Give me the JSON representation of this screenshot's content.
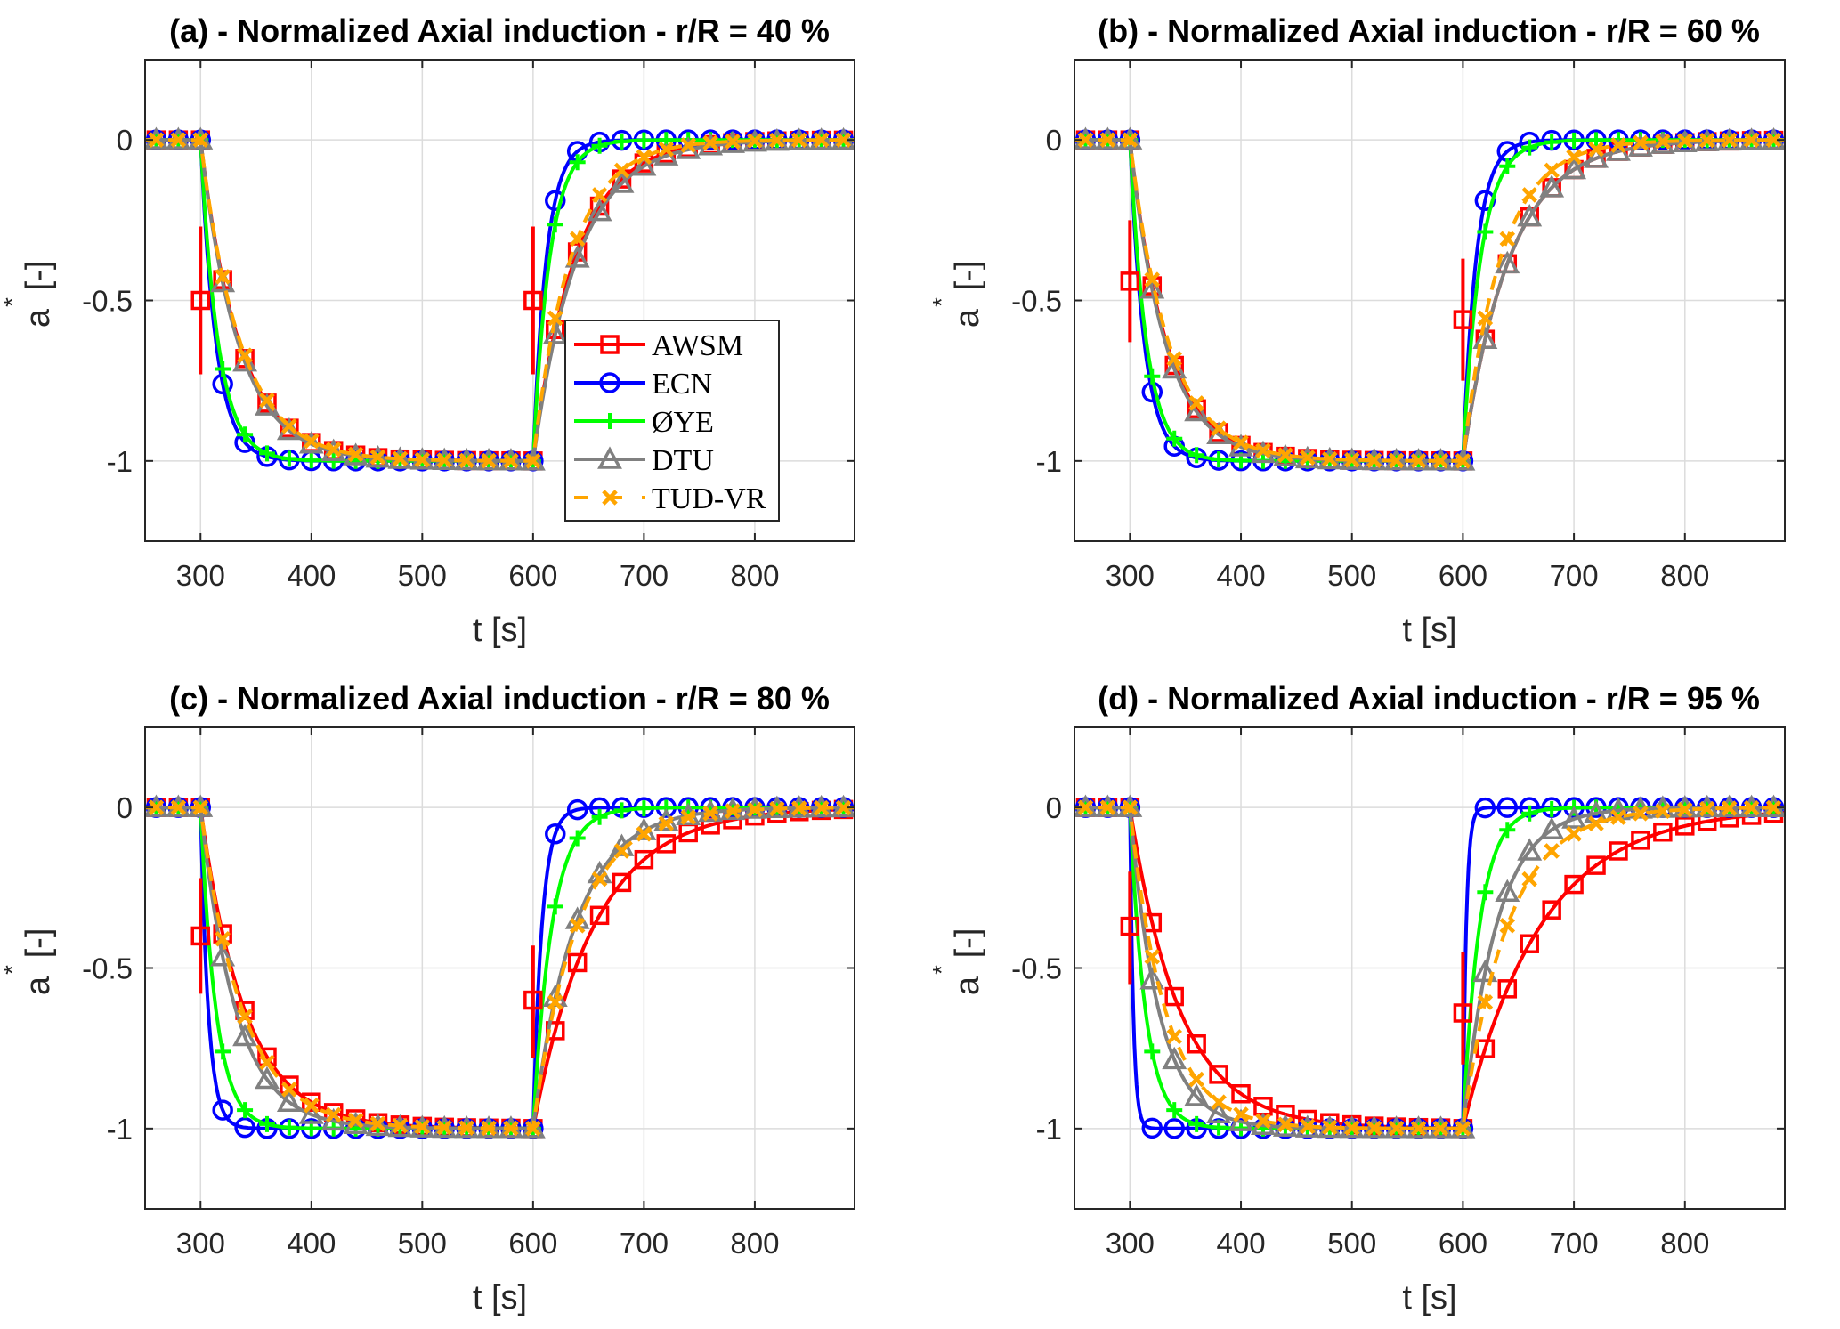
{
  "chart_data": [
    {
      "type": "line",
      "panel": "a",
      "title": "(a) - Normalized Axial induction - r/R = 40 %",
      "xlabel": "t [s]",
      "ylabel": "a* [-]",
      "ylabel_main": "a",
      "ylabel_sup": "*",
      "ylabel_unit": "[-]",
      "xlim": [
        250,
        890
      ],
      "ylim": [
        -1.25,
        0.25
      ],
      "xticks": [
        300,
        400,
        500,
        600,
        700,
        800
      ],
      "xtick_labels": [
        "300",
        "400",
        "500",
        "600",
        "700",
        "800"
      ],
      "yticks": [
        0,
        -0.5,
        -1
      ],
      "ytick_labels": [
        "0",
        "-0.5",
        "-1"
      ],
      "grid": true,
      "legend": {
        "visible": true,
        "placement": "center-right"
      },
      "step_times": [
        300,
        600
      ],
      "tau_down": {
        "AWSM": 35,
        "ECN": 14,
        "ØYE": 16,
        "DTU": 34,
        "TUD-VR": 36
      },
      "tau_up": {
        "AWSM": 38,
        "ECN": 12,
        "ØYE": 15,
        "DTU": 40,
        "TUD-VR": 34
      },
      "awsm_errorbars": [
        {
          "t": 300,
          "y": -0.5,
          "low": -0.73,
          "high": -0.27
        },
        {
          "t": 600,
          "y": -0.5,
          "low": -0.73,
          "high": -0.27
        }
      ]
    },
    {
      "type": "line",
      "panel": "b",
      "title": "(b) - Normalized Axial induction - r/R = 60 %",
      "xlabel": "t [s]",
      "ylabel": "a* [-]",
      "ylabel_main": "a",
      "ylabel_sup": "*",
      "ylabel_unit": "[-]",
      "xlim": [
        250,
        890
      ],
      "ylim": [
        -1.25,
        0.25
      ],
      "xticks": [
        300,
        400,
        500,
        600,
        700,
        800
      ],
      "xtick_labels": [
        "300",
        "400",
        "500",
        "600",
        "700",
        "800"
      ],
      "yticks": [
        0,
        -0.5,
        -1
      ],
      "ytick_labels": [
        "0",
        "-0.5",
        "-1"
      ],
      "grid": true,
      "legend": {
        "visible": false
      },
      "step_times": [
        300,
        600
      ],
      "tau_down": {
        "AWSM": 33,
        "ECN": 13,
        "ØYE": 15,
        "DTU": 32,
        "TUD-VR": 35
      },
      "tau_up": {
        "AWSM": 42,
        "ECN": 12,
        "ØYE": 16,
        "DTU": 42,
        "TUD-VR": 34
      },
      "awsm_errorbars": [
        {
          "t": 300,
          "y": -0.44,
          "low": -0.63,
          "high": -0.25
        },
        {
          "t": 600,
          "y": -0.56,
          "low": -0.75,
          "high": -0.37
        }
      ]
    },
    {
      "type": "line",
      "panel": "c",
      "title": "(c) - Normalized Axial induction - r/R = 80 %",
      "xlabel": "t [s]",
      "ylabel": "a* [-]",
      "ylabel_main": "a",
      "ylabel_sup": "*",
      "ylabel_unit": "[-]",
      "xlim": [
        250,
        890
      ],
      "ylim": [
        -1.25,
        0.25
      ],
      "xticks": [
        300,
        400,
        500,
        600,
        700,
        800
      ],
      "xtick_labels": [
        "300",
        "400",
        "500",
        "600",
        "700",
        "800"
      ],
      "yticks": [
        0,
        -0.5,
        -1
      ],
      "ytick_labels": [
        "0",
        "-0.5",
        "-1"
      ],
      "grid": true,
      "legend": {
        "visible": false
      },
      "step_times": [
        300,
        600
      ],
      "tau_down": {
        "AWSM": 40,
        "ECN": 7,
        "ØYE": 14,
        "DTU": 32,
        "TUD-VR": 38
      },
      "tau_up": {
        "AWSM": 55,
        "ECN": 8,
        "ØYE": 17,
        "DTU": 38,
        "TUD-VR": 40
      },
      "awsm_errorbars": [
        {
          "t": 300,
          "y": -0.4,
          "low": -0.58,
          "high": -0.22
        },
        {
          "t": 600,
          "y": -0.6,
          "low": -0.78,
          "high": -0.43
        }
      ]
    },
    {
      "type": "line",
      "panel": "d",
      "title": "(d) - Normalized Axial induction - r/R = 95 %",
      "xlabel": "t [s]",
      "ylabel": "a* [-]",
      "ylabel_main": "a",
      "ylabel_sup": "*",
      "ylabel_unit": "[-]",
      "xlim": [
        250,
        890
      ],
      "ylim": [
        -1.25,
        0.25
      ],
      "xticks": [
        300,
        400,
        500,
        600,
        700,
        800
      ],
      "xtick_labels": [
        "300",
        "400",
        "500",
        "600",
        "700",
        "800"
      ],
      "yticks": [
        0,
        -0.5,
        -1
      ],
      "ytick_labels": [
        "0",
        "-0.5",
        "-1"
      ],
      "grid": true,
      "legend": {
        "visible": false
      },
      "step_times": [
        300,
        600
      ],
      "tau_down": {
        "AWSM": 45,
        "ECN": 3,
        "ØYE": 14,
        "DTU": 26,
        "TUD-VR": 32
      },
      "tau_up": {
        "AWSM": 70,
        "ECN": 3,
        "ØYE": 15,
        "DTU": 30,
        "TUD-VR": 40
      },
      "awsm_errorbars": [
        {
          "t": 300,
          "y": -0.37,
          "low": -0.55,
          "high": -0.2
        },
        {
          "t": 600,
          "y": -0.64,
          "low": -0.8,
          "high": -0.45
        }
      ]
    }
  ],
  "series": [
    {
      "name": "AWSM",
      "color": "#ff0000",
      "marker": "square",
      "line": "solid"
    },
    {
      "name": "ECN",
      "color": "#0000ff",
      "marker": "circle",
      "line": "solid"
    },
    {
      "name": "ØYE",
      "color": "#00ff00",
      "marker": "plus",
      "line": "solid"
    },
    {
      "name": "DTU",
      "color": "#808080",
      "marker": "triangle",
      "line": "solid"
    },
    {
      "name": "TUD-VR",
      "color": "#ffa500",
      "marker": "x",
      "line": "dashed"
    }
  ],
  "marker_times": [
    260,
    280,
    300,
    320,
    340,
    360,
    380,
    400,
    420,
    440,
    460,
    480,
    500,
    520,
    540,
    560,
    580,
    600,
    620,
    640,
    660,
    680,
    700,
    720,
    740,
    760,
    780,
    800,
    820,
    840,
    860,
    880
  ],
  "model_description": "a*(t) = 0 for t<300; -1 + exp(-(t-300)/tau_down) for 300<=t<600; -exp(-(t-600)/tau_up) for t>=600"
}
